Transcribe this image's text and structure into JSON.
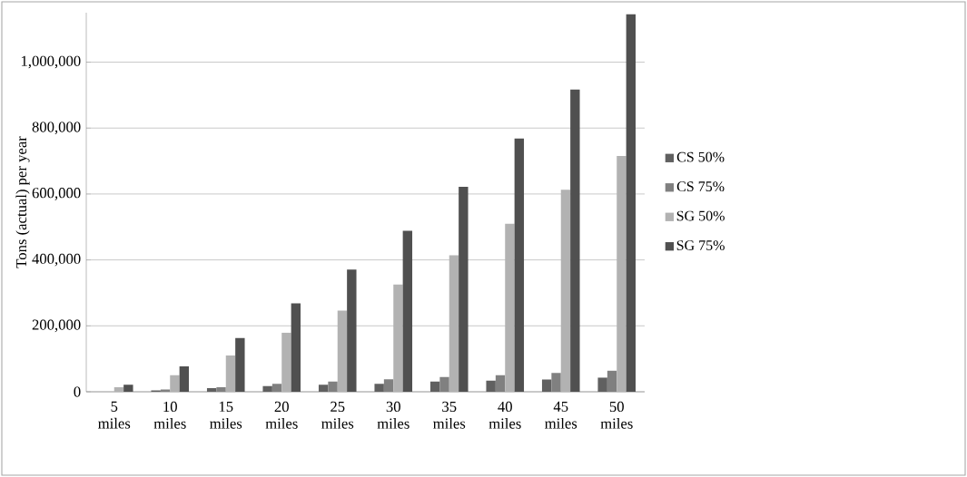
{
  "chart_data": {
    "type": "bar",
    "ylabel": "Tons (actual) per year",
    "categories": [
      "5 miles",
      "10 miles",
      "15 miles",
      "20 miles",
      "25 miles",
      "30 miles",
      "35 miles",
      "40 miles",
      "45 miles",
      "50 miles"
    ],
    "series": [
      {
        "name": "CS 50%",
        "color": "#606060",
        "values": [
          0,
          4000,
          11000,
          17000,
          21000,
          24000,
          31000,
          34000,
          37000,
          43000
        ]
      },
      {
        "name": "CS 75%",
        "color": "#808080",
        "values": [
          0,
          7000,
          14000,
          24000,
          31000,
          38000,
          45000,
          50000,
          57000,
          64000
        ]
      },
      {
        "name": "SG 50%",
        "color": "#b2b2b2",
        "values": [
          14000,
          50000,
          110000,
          179000,
          246000,
          325000,
          414000,
          510000,
          613000,
          715000
        ]
      },
      {
        "name": "SG 75%",
        "color": "#505050",
        "values": [
          21000,
          77000,
          163000,
          268000,
          371000,
          488000,
          622000,
          768000,
          917000,
          1145000
        ]
      }
    ],
    "ylim": [
      0,
      1150000
    ],
    "yticks": [
      0,
      {
        "value": 200000,
        "label": "200,000"
      },
      {
        "value": 400000,
        "label": "400,000"
      },
      {
        "value": 600000,
        "label": "600,000"
      },
      {
        "value": 800000,
        "label": "800,000"
      },
      {
        "value": 1000000,
        "label": "1,000,000"
      }
    ],
    "grid": "y",
    "legend": "right"
  }
}
